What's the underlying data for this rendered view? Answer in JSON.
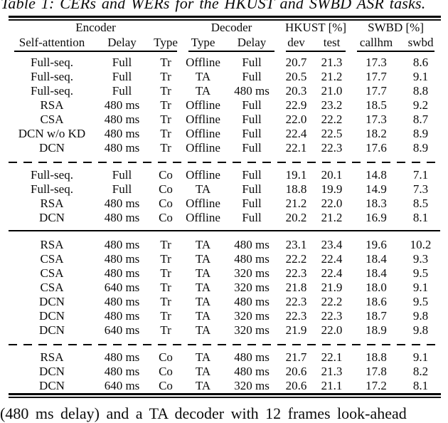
{
  "caption": "Table 1: CERs and WERs for the HKUST and SWBD ASR tasks.",
  "footer_text": "(480 ms delay) and a TA decoder with 12 frames look-ahead",
  "table": {
    "groups": [
      {
        "label": "Encoder",
        "span": 3
      },
      {
        "label": "Decoder",
        "span": 2
      },
      {
        "label": "HKUST [%]",
        "span": 2
      },
      {
        "label": "SWBD [%]",
        "span": 2
      }
    ],
    "columns": [
      "Self-attention",
      "Delay",
      "Type",
      "Type",
      "Delay",
      "dev",
      "test",
      "callhm",
      "swbd"
    ],
    "sections": [
      {
        "rows": [
          {
            "cells": [
              "Full-seq.",
              "Full",
              "Tr",
              "Offline",
              "Full",
              "20.7",
              "21.3",
              "17.3",
              "8.6"
            ]
          },
          {
            "cells": [
              "Full-seq.",
              "Full",
              "Tr",
              "TA",
              "Full",
              "20.5",
              "21.2",
              "17.7",
              "9.1"
            ]
          },
          {
            "cells": [
              "Full-seq.",
              "Full",
              "Tr",
              "TA",
              "480 ms",
              "20.3",
              "21.0",
              "17.7",
              "8.8"
            ]
          },
          {
            "cells": [
              "RSA",
              "480 ms",
              "Tr",
              "Offline",
              "Full",
              "22.9",
              "23.2",
              "18.5",
              "9.2"
            ]
          },
          {
            "cells": [
              "CSA",
              "480 ms",
              "Tr",
              "Offline",
              "Full",
              "22.0",
              "22.2",
              "17.3",
              "8.7"
            ]
          },
          {
            "cells": [
              "DCN w/o KD",
              "480 ms",
              "Tr",
              "Offline",
              "Full",
              "22.4",
              "22.5",
              "18.2",
              "8.9"
            ]
          },
          {
            "cells": [
              "DCN",
              "480 ms",
              "Tr",
              "Offline",
              "Full",
              "22.1",
              "22.3",
              "17.6",
              "8.9"
            ]
          }
        ],
        "separator_after": "dashed"
      },
      {
        "rows": [
          {
            "cells": [
              "Full-seq.",
              "Full",
              "Co",
              "Offline",
              "Full",
              "19.1",
              "20.1",
              "14.8",
              "7.1"
            ]
          },
          {
            "cells": [
              "Full-seq.",
              "Full",
              "Co",
              "TA",
              "Full",
              "18.8",
              "19.9",
              "14.9",
              "7.3"
            ]
          },
          {
            "cells": [
              "RSA",
              "480 ms",
              "Co",
              "Offline",
              "Full",
              "21.2",
              "22.0",
              "18.3",
              "8.5"
            ]
          },
          {
            "cells": [
              "DCN",
              "480 ms",
              "Co",
              "Offline",
              "Full",
              "20.2",
              "21.2",
              "16.9",
              "8.1"
            ]
          }
        ],
        "separator_after": "solid"
      },
      {
        "rows": [
          {
            "cells": [
              "RSA",
              "480 ms",
              "Tr",
              "TA",
              "480 ms",
              "23.1",
              "23.4",
              "19.6",
              "10.2"
            ]
          },
          {
            "cells": [
              "CSA",
              "480 ms",
              "Tr",
              "TA",
              "480 ms",
              "22.2",
              "22.4",
              "18.4",
              "9.3"
            ]
          },
          {
            "cells": [
              "CSA",
              "480 ms",
              "Tr",
              "TA",
              "320 ms",
              "22.3",
              "22.4",
              "18.4",
              "9.5"
            ]
          },
          {
            "cells": [
              "CSA",
              "640 ms",
              "Tr",
              "TA",
              "320 ms",
              "21.8",
              "21.9",
              "18.0",
              "9.1"
            ]
          },
          {
            "cells": [
              "DCN",
              "480 ms",
              "Tr",
              "TA",
              "480 ms",
              "22.3",
              "22.2",
              "18.6",
              "9.5"
            ]
          },
          {
            "cells": [
              "DCN",
              "480 ms",
              "Tr",
              "TA",
              "320 ms",
              "22.3",
              "22.3",
              "18.7",
              "9.8"
            ]
          },
          {
            "cells": [
              "DCN",
              "640 ms",
              "Tr",
              "TA",
              "320 ms",
              "21.9",
              "22.0",
              "18.9",
              "9.8"
            ]
          }
        ],
        "separator_after": "dashed"
      },
      {
        "rows": [
          {
            "cells": [
              "RSA",
              "480 ms",
              "Co",
              "TA",
              "480 ms",
              "21.7",
              "22.1",
              "18.8",
              "9.1"
            ]
          },
          {
            "cells": [
              "DCN",
              "480 ms",
              "Co",
              "TA",
              "480 ms",
              "20.6",
              "21.3",
              "17.8",
              "8.2"
            ]
          },
          {
            "cells": [
              "DCN",
              "640 ms",
              "Co",
              "TA",
              "320 ms",
              "20.6",
              "21.1",
              "17.2",
              "8.1"
            ],
            "bold_cells": [
              5,
              6,
              7,
              8
            ]
          }
        ],
        "separator_after": null
      }
    ]
  }
}
